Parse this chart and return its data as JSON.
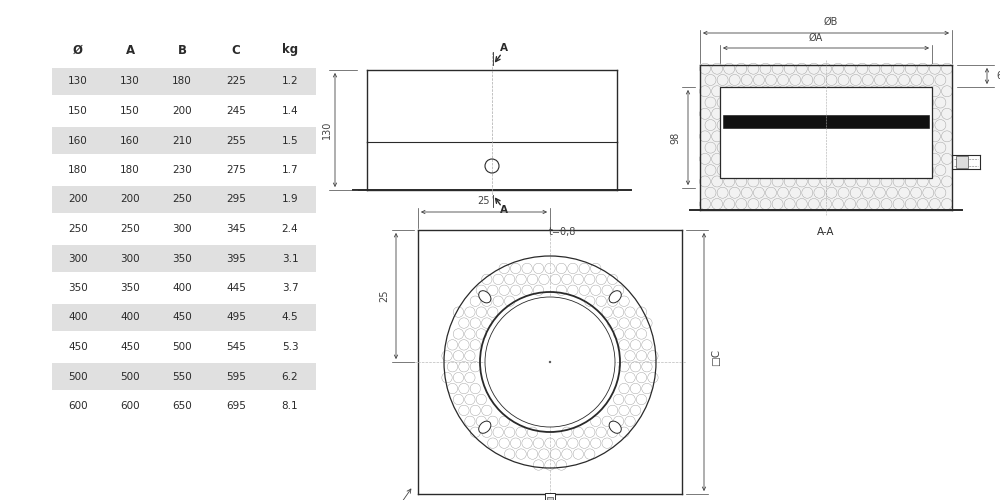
{
  "bg_color": "#ffffff",
  "line_color": "#2a2a2a",
  "dim_color": "#444444",
  "table_row_even_color": "#e0e0e0",
  "table_row_odd_color": "#ffffff",
  "table_data": {
    "headers": [
      "Ø",
      "A",
      "B",
      "C",
      "kg"
    ],
    "rows": [
      [
        "130",
        "130",
        "180",
        "225",
        "1.2"
      ],
      [
        "150",
        "150",
        "200",
        "245",
        "1.4"
      ],
      [
        "160",
        "160",
        "210",
        "255",
        "1.5"
      ],
      [
        "180",
        "180",
        "230",
        "275",
        "1.7"
      ],
      [
        "200",
        "200",
        "250",
        "295",
        "1.9"
      ],
      [
        "250",
        "250",
        "300",
        "345",
        "2.4"
      ],
      [
        "300",
        "300",
        "350",
        "395",
        "3.1"
      ],
      [
        "350",
        "350",
        "400",
        "445",
        "3.7"
      ],
      [
        "400",
        "400",
        "450",
        "495",
        "4.5"
      ],
      [
        "450",
        "450",
        "500",
        "545",
        "5.3"
      ],
      [
        "500",
        "500",
        "550",
        "595",
        "6.2"
      ],
      [
        "600",
        "600",
        "650",
        "695",
        "8.1"
      ]
    ]
  },
  "fs": 7.5,
  "fs_hdr": 8.5,
  "fs_dim": 7.0
}
